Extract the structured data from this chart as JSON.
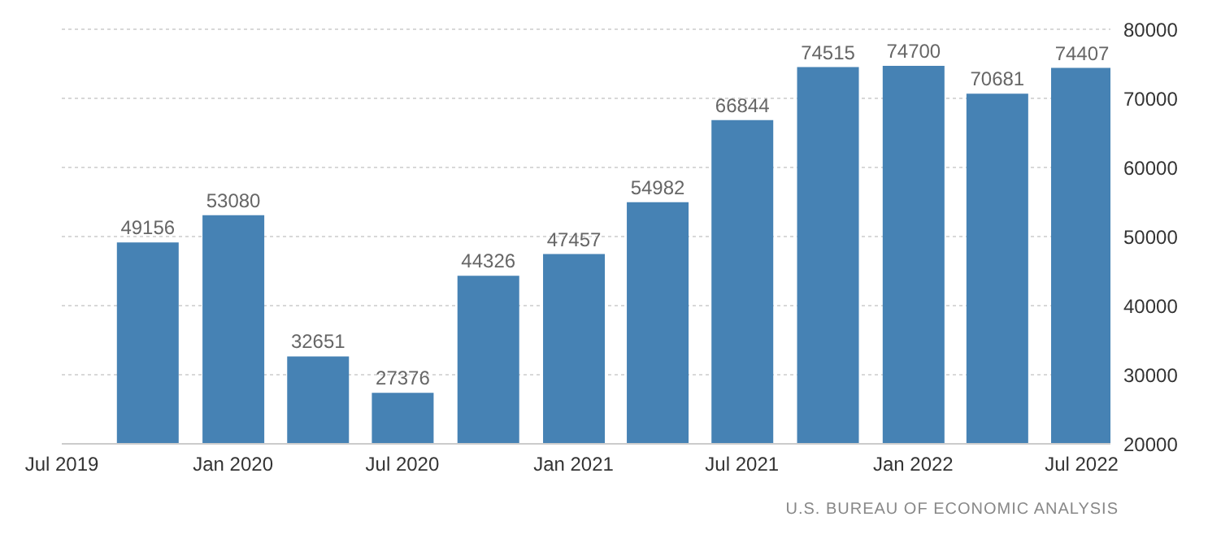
{
  "chart_data": {
    "type": "bar",
    "x": [
      "2019-10",
      "2020-01",
      "2020-04",
      "2020-07",
      "2020-10",
      "2021-01",
      "2021-04",
      "2021-07",
      "2021-10",
      "2022-01",
      "2022-04",
      "2022-07"
    ],
    "values": [
      49156,
      53080,
      32651,
      27376,
      44326,
      47457,
      54982,
      66844,
      74515,
      74700,
      70681,
      74407
    ],
    "color": "#4682b4",
    "xlim": [
      "2019-07",
      "2022-08"
    ],
    "xticks": [
      {
        "value": "2019-07",
        "label": "Jul 2019"
      },
      {
        "value": "2020-01",
        "label": "Jan 2020"
      },
      {
        "value": "2020-07",
        "label": "Jul 2020"
      },
      {
        "value": "2021-01",
        "label": "Jan 2021"
      },
      {
        "value": "2021-07",
        "label": "Jul 2021"
      },
      {
        "value": "2022-01",
        "label": "Jan 2022"
      },
      {
        "value": "2022-07",
        "label": "Jul 2022"
      }
    ],
    "ylim": [
      20000,
      80000
    ],
    "yticks": [
      20000,
      30000,
      40000,
      50000,
      60000,
      70000,
      80000
    ],
    "grid": "y",
    "data_labels": true,
    "annotations": [
      "U.S. BUREAU OF ECONOMIC ANALYSIS"
    ]
  }
}
